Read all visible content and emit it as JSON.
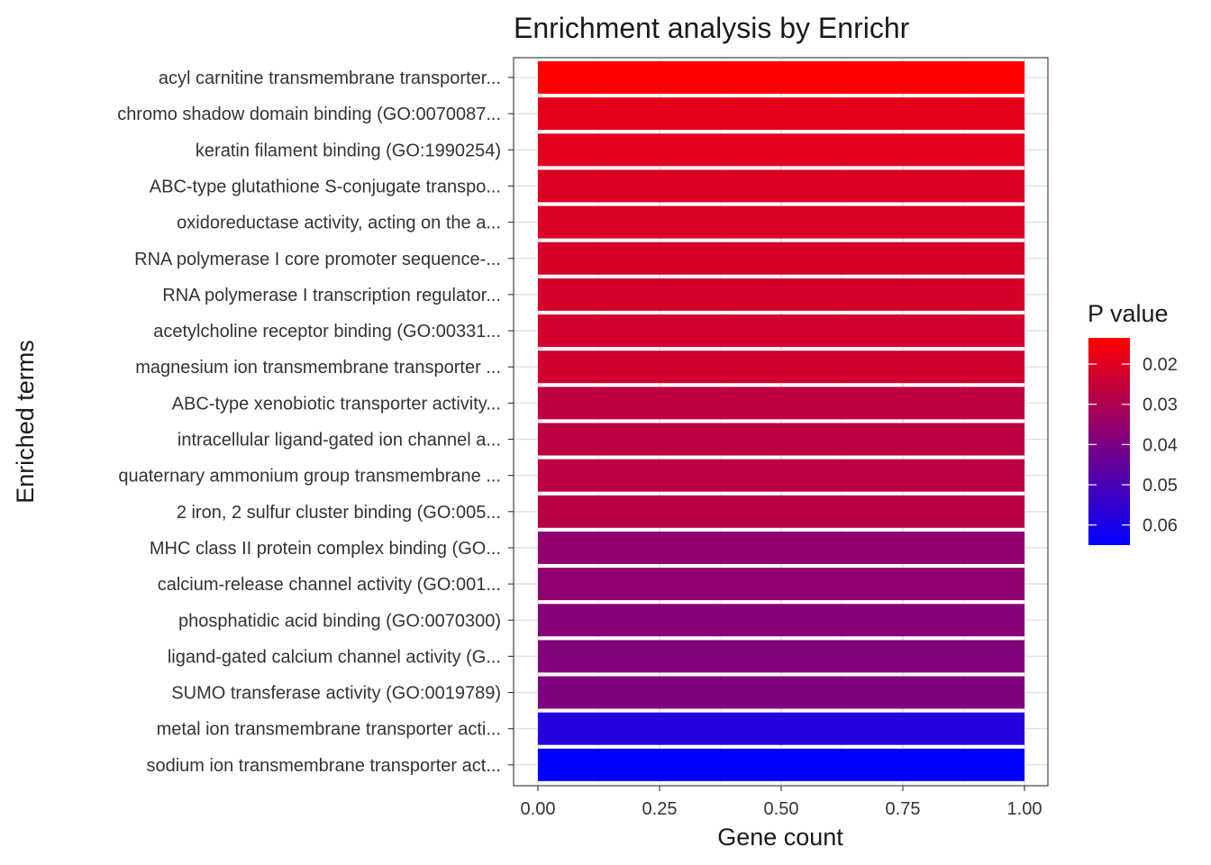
{
  "chart_data": {
    "type": "bar",
    "orientation": "horizontal",
    "title": "Enrichment analysis by Enrichr",
    "xlabel": "Gene count",
    "ylabel": "Enriched terms",
    "xlim": [
      0,
      1
    ],
    "xticks": [
      "0.00",
      "0.25",
      "0.50",
      "0.75",
      "1.00"
    ],
    "grid": true,
    "categories": [
      "acyl carnitine transmembrane transporter...",
      "chromo shadow domain binding (GO:0070087...",
      "keratin filament binding (GO:1990254)",
      "ABC-type glutathione S-conjugate transpo...",
      "oxidoreductase activity, acting on the a...",
      "RNA polymerase I core promoter sequence-...",
      "RNA polymerase I transcription regulator...",
      "acetylcholine receptor binding (GO:00331...",
      "magnesium ion transmembrane transporter ...",
      "ABC-type xenobiotic transporter activity...",
      "intracellular ligand-gated ion channel a...",
      "quaternary ammonium group transmembrane ...",
      "2 iron, 2 sulfur cluster binding (GO:005...",
      "MHC class II protein complex binding (GO...",
      "calcium-release channel activity (GO:001...",
      "phosphatidic acid binding (GO:0070300)",
      "ligand-gated calcium channel activity (G...",
      "SUMO transferase activity (GO:0019789)",
      "metal ion transmembrane transporter acti...",
      "sodium ion transmembrane transporter act..."
    ],
    "values": [
      1,
      1,
      1,
      1,
      1,
      1,
      1,
      1,
      1,
      1,
      1,
      1,
      1,
      1,
      1,
      1,
      1,
      1,
      1,
      1
    ],
    "p_values": [
      0.0135,
      0.019,
      0.0195,
      0.0205,
      0.021,
      0.0215,
      0.022,
      0.0225,
      0.023,
      0.0265,
      0.027,
      0.027,
      0.0275,
      0.0355,
      0.036,
      0.038,
      0.0385,
      0.039,
      0.058,
      0.065
    ],
    "legend": {
      "title": "P value",
      "position": "right",
      "ticks": [
        "0.02",
        "0.03",
        "0.04",
        "0.05",
        "0.06"
      ],
      "tick_values": [
        0.02,
        0.03,
        0.04,
        0.05,
        0.06
      ],
      "range": [
        0.0135,
        0.065
      ],
      "low_color": "#ff0000",
      "high_color": "#0000ff"
    }
  }
}
